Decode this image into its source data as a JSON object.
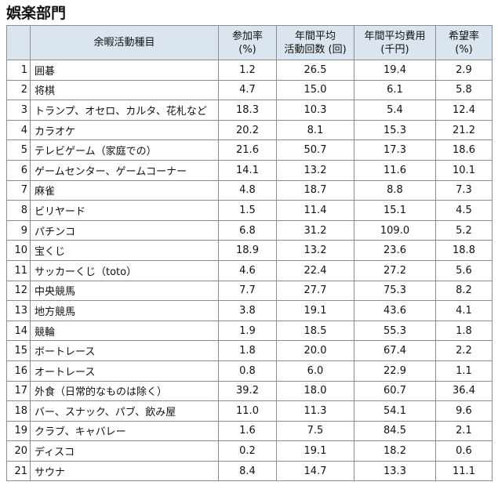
{
  "title": "娯楽部門",
  "table": {
    "header": [
      [
        "余暇活動種目"
      ],
      [
        "参加率",
        "(%)"
      ],
      [
        "年間平均",
        "活動回数 (回)"
      ],
      [
        "年間平均費用",
        "(千円)"
      ],
      [
        "希望率",
        "(%)"
      ]
    ],
    "rows": [
      [
        1,
        "囲碁",
        "1.2",
        "26.5",
        "19.4",
        "2.9"
      ],
      [
        2,
        "将棋",
        "4.7",
        "15.0",
        "6.1",
        "5.8"
      ],
      [
        3,
        "トランプ、オセロ、カルタ、花札など",
        "18.3",
        "10.3",
        "5.4",
        "12.4"
      ],
      [
        4,
        "カラオケ",
        "20.2",
        "8.1",
        "15.3",
        "21.2"
      ],
      [
        5,
        "テレビゲーム（家庭での）",
        "21.6",
        "50.7",
        "17.3",
        "18.6"
      ],
      [
        6,
        "ゲームセンター、ゲームコーナー",
        "14.1",
        "13.2",
        "11.6",
        "10.1"
      ],
      [
        7,
        "麻雀",
        "4.8",
        "18.7",
        "8.8",
        "7.3"
      ],
      [
        8,
        "ビリヤード",
        "1.5",
        "11.4",
        "15.1",
        "4.5"
      ],
      [
        9,
        "パチンコ",
        "6.8",
        "31.2",
        "109.0",
        "5.2"
      ],
      [
        10,
        "宝くじ",
        "18.9",
        "13.2",
        "23.6",
        "18.8"
      ],
      [
        11,
        "サッカーくじ（toto）",
        "4.6",
        "22.4",
        "27.2",
        "5.6"
      ],
      [
        12,
        "中央競馬",
        "7.7",
        "27.7",
        "75.3",
        "8.2"
      ],
      [
        13,
        "地方競馬",
        "3.8",
        "19.1",
        "43.6",
        "4.1"
      ],
      [
        14,
        "競輪",
        "1.9",
        "18.5",
        "55.3",
        "1.8"
      ],
      [
        15,
        "ボートレース",
        "1.8",
        "20.0",
        "67.4",
        "2.2"
      ],
      [
        16,
        "オートレース",
        "0.8",
        "6.0",
        "22.9",
        "1.1"
      ],
      [
        17,
        "外食（日常的なものは除く）",
        "39.2",
        "18.0",
        "60.7",
        "36.4"
      ],
      [
        18,
        "バー、スナック、パブ、飲み屋",
        "11.0",
        "11.3",
        "54.1",
        "9.6"
      ],
      [
        19,
        "クラブ、キャバレー",
        "1.6",
        "7.5",
        "84.5",
        "2.1"
      ],
      [
        20,
        "ディスコ",
        "0.2",
        "19.1",
        "18.2",
        "0.6"
      ],
      [
        21,
        "サウナ",
        "8.4",
        "14.7",
        "13.3",
        "11.1"
      ]
    ]
  }
}
